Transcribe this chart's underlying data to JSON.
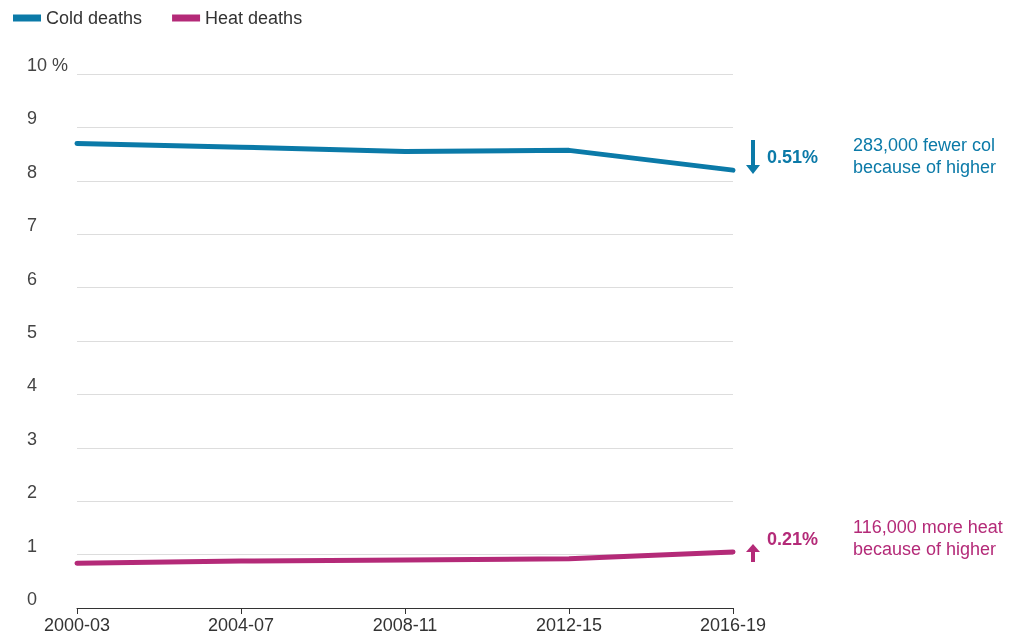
{
  "chart_data": {
    "type": "line",
    "categories": [
      "2000-03",
      "2004-07",
      "2008-11",
      "2012-15",
      "2016-19"
    ],
    "series": [
      {
        "name": "Cold deaths",
        "color": "#0b7aa8",
        "values": [
          8.7,
          8.63,
          8.55,
          8.57,
          8.2
        ]
      },
      {
        "name": "Heat deaths",
        "color": "#b42a78",
        "values": [
          0.84,
          0.88,
          0.9,
          0.92,
          1.05
        ]
      }
    ],
    "ylim": [
      0,
      10
    ],
    "yticks": [
      0,
      1,
      2,
      3,
      4,
      5,
      6,
      7,
      8,
      9,
      {
        "value": 10,
        "label": "10 %"
      }
    ],
    "grid": "y",
    "legend": "top left",
    "marker": "none",
    "line_style": "solid",
    "annotations": [
      {
        "text": "0.51%",
        "x": "2016-19",
        "y": 8.2
      },
      "283,000 fewer col\nbecause of higher",
      {
        "text": "0.21%",
        "x": "2016-19",
        "y": 1.05
      },
      "116,000 more heat\nbecause of higher"
    ]
  }
}
